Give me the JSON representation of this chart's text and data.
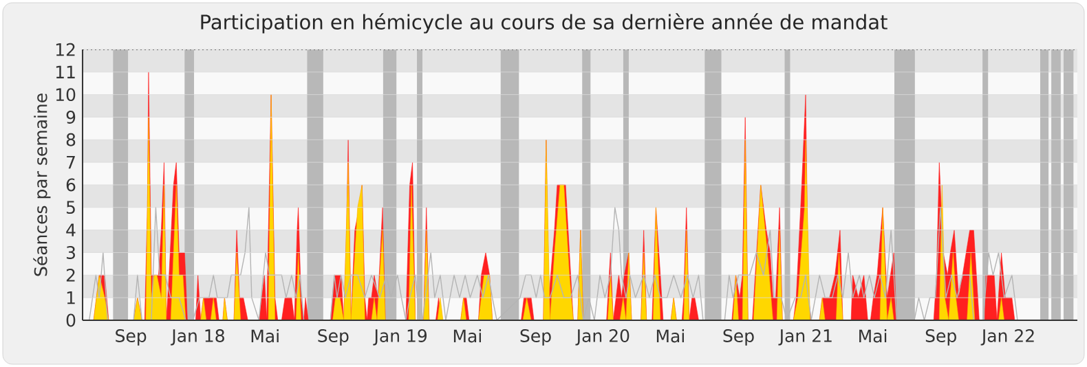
{
  "chart_data": {
    "type": "area",
    "title": "Participation en hémicycle au cours de sa dernière année de mandat",
    "ylabel": "Séances par semaine",
    "xlim": [
      "2017-06-06",
      "2022-05-05"
    ],
    "ylim": [
      0,
      12
    ],
    "xticks": [
      {
        "value": "2017-09-01",
        "label": "Sep"
      },
      {
        "value": "2018-01-01",
        "label": "Jan 18"
      },
      {
        "value": "2018-05-01",
        "label": "Mai"
      },
      {
        "value": "2018-09-01",
        "label": "Sep"
      },
      {
        "value": "2019-01-01",
        "label": "Jan 19"
      },
      {
        "value": "2019-05-01",
        "label": "Mai"
      },
      {
        "value": "2019-09-01",
        "label": "Sep"
      },
      {
        "value": "2020-01-01",
        "label": "Jan 20"
      },
      {
        "value": "2020-05-01",
        "label": "Mai"
      },
      {
        "value": "2020-09-01",
        "label": "Sep"
      },
      {
        "value": "2021-01-01",
        "label": "Jan 21"
      },
      {
        "value": "2021-05-01",
        "label": "Mai"
      },
      {
        "value": "2021-09-01",
        "label": "Sep"
      },
      {
        "value": "2022-01-01",
        "label": "Jan 22"
      }
    ],
    "yticks": [
      0,
      1,
      2,
      3,
      4,
      5,
      6,
      7,
      8,
      9,
      10,
      11,
      12
    ],
    "grid": "y",
    "bands": [
      {
        "axis": "x",
        "from": "2017-07-31",
        "to": "2017-08-27",
        "color": "#b8b8b8"
      },
      {
        "axis": "x",
        "from": "2017-12-07",
        "to": "2017-12-24",
        "color": "#b8b8b8"
      },
      {
        "axis": "x",
        "from": "2018-07-16",
        "to": "2018-08-14",
        "color": "#b8b8b8"
      },
      {
        "axis": "x",
        "from": "2018-11-30",
        "to": "2018-12-24",
        "color": "#b8b8b8"
      },
      {
        "axis": "x",
        "from": "2019-01-30",
        "to": "2019-02-09",
        "color": "#b8b8b8"
      },
      {
        "axis": "x",
        "from": "2019-06-30",
        "to": "2019-08-02",
        "color": "#b8b8b8"
      },
      {
        "axis": "x",
        "from": "2019-11-24",
        "to": "2019-12-09",
        "color": "#b8b8b8"
      },
      {
        "axis": "x",
        "from": "2020-02-06",
        "to": "2020-02-16",
        "color": "#b8b8b8"
      },
      {
        "axis": "x",
        "from": "2020-07-02",
        "to": "2020-08-01",
        "color": "#b8b8b8"
      },
      {
        "axis": "x",
        "from": "2020-11-23",
        "to": "2020-12-03",
        "color": "#b8b8b8"
      },
      {
        "axis": "x",
        "from": "2021-06-09",
        "to": "2021-07-16",
        "color": "#b8b8b8"
      },
      {
        "axis": "x",
        "from": "2021-11-15",
        "to": "2021-11-25",
        "color": "#b8b8b8"
      },
      {
        "axis": "x",
        "from": "2022-02-27",
        "to": "2022-03-14",
        "color": "#b8b8b8"
      },
      {
        "axis": "x",
        "from": "2022-03-19",
        "to": "2022-04-05",
        "color": "#b8b8b8"
      },
      {
        "axis": "x",
        "from": "2022-04-10",
        "to": "2022-04-28",
        "color": "#b8b8b8"
      }
    ],
    "series": [
      {
        "color": "#ff2020",
        "x": [
          "2017-06-26",
          "2017-07-06",
          "2017-07-16",
          "2017-07-23",
          "2017-09-06",
          "2017-09-13",
          "2017-09-21",
          "2017-09-26",
          "2017-10-01",
          "2017-10-03",
          "2017-10-08",
          "2017-10-13",
          "2017-10-21",
          "2017-10-26",
          "2017-10-31",
          "2017-11-04",
          "2017-11-09",
          "2017-11-17",
          "2017-11-22",
          "2017-11-27",
          "2017-12-07",
          "2017-12-12",
          "2017-12-27",
          "2017-12-31",
          "2018-01-05",
          "2018-01-10",
          "2018-01-15",
          "2018-02-02",
          "2018-02-07",
          "2018-02-14",
          "2018-02-17",
          "2018-02-22",
          "2018-03-06",
          "2018-03-11",
          "2018-03-16",
          "2018-03-23",
          "2018-03-31",
          "2018-04-20",
          "2018-04-25",
          "2018-04-30",
          "2018-05-04",
          "2018-05-12",
          "2018-05-19",
          "2018-05-24",
          "2018-05-31",
          "2018-06-06",
          "2018-06-18",
          "2018-06-23",
          "2018-06-28",
          "2018-06-30",
          "2018-07-05",
          "2018-07-10",
          "2018-07-13",
          "2018-07-18",
          "2018-08-27",
          "2018-09-03",
          "2018-09-15",
          "2018-09-20",
          "2018-09-25",
          "2018-09-28",
          "2018-10-03",
          "2018-10-10",
          "2018-10-18",
          "2018-10-23",
          "2018-10-28",
          "2018-11-01",
          "2018-11-04",
          "2018-11-09",
          "2018-11-14",
          "2018-11-21",
          "2018-11-29",
          "2018-12-04",
          "2019-01-10",
          "2019-01-17",
          "2019-01-22",
          "2019-01-27",
          "2019-02-11",
          "2019-02-16",
          "2019-02-21",
          "2019-03-05",
          "2019-03-10",
          "2019-03-15",
          "2019-04-19",
          "2019-04-24",
          "2019-04-29",
          "2019-05-04",
          "2019-05-21",
          "2019-05-26",
          "2019-06-03",
          "2019-06-10",
          "2019-06-15",
          "2019-08-06",
          "2019-08-11",
          "2019-08-24",
          "2019-08-29",
          "2019-09-15",
          "2019-09-20",
          "2019-09-25",
          "2019-10-05",
          "2019-10-10",
          "2019-10-25",
          "2019-11-01",
          "2019-11-08",
          "2019-11-16",
          "2019-11-21",
          "2019-11-26",
          "2020-01-07",
          "2020-01-14",
          "2020-01-19",
          "2020-01-24",
          "2020-01-29",
          "2020-02-03",
          "2020-02-08",
          "2020-02-16",
          "2020-02-21",
          "2020-03-09",
          "2020-03-14",
          "2020-03-19",
          "2020-03-29",
          "2020-04-05",
          "2020-04-13",
          "2020-04-18",
          "2020-05-02",
          "2020-05-07",
          "2020-05-12",
          "2020-05-22",
          "2020-05-25",
          "2020-05-30",
          "2020-06-04",
          "2020-06-09",
          "2020-06-14",
          "2020-06-21",
          "2020-08-20",
          "2020-08-27",
          "2020-09-03",
          "2020-09-08",
          "2020-09-13",
          "2020-09-18",
          "2020-09-26",
          "2020-10-11",
          "2020-10-21",
          "2020-10-28",
          "2020-11-02",
          "2020-11-07",
          "2020-11-14",
          "2020-11-19",
          "2020-12-09",
          "2020-12-14",
          "2020-12-24",
          "2020-12-31",
          "2021-01-05",
          "2021-01-10",
          "2021-01-25",
          "2021-01-30",
          "2021-02-12",
          "2021-02-22",
          "2021-03-03",
          "2021-03-08",
          "2021-03-23",
          "2021-03-26",
          "2021-04-05",
          "2021-04-15",
          "2021-04-22",
          "2021-04-27",
          "2021-05-02",
          "2021-05-09",
          "2021-05-19",
          "2021-05-27",
          "2021-06-08",
          "2021-06-13",
          "2021-08-19",
          "2021-08-24",
          "2021-08-29",
          "2021-09-05",
          "2021-09-13",
          "2021-09-18",
          "2021-09-25",
          "2021-10-03",
          "2021-10-10",
          "2021-10-23",
          "2021-10-30",
          "2021-11-04",
          "2021-11-09",
          "2021-11-19",
          "2021-11-21",
          "2021-12-06",
          "2021-12-11",
          "2021-12-19",
          "2021-12-26",
          "2022-01-07",
          "2022-01-12"
        ],
        "values": [
          0,
          2,
          2,
          0,
          0,
          1,
          0,
          0,
          5,
          11,
          2,
          2,
          2,
          4,
          7,
          0,
          2,
          6,
          7,
          3,
          3,
          0,
          0,
          2,
          0,
          1,
          1,
          1,
          0,
          0,
          1,
          0,
          0,
          4,
          1,
          1,
          0,
          0,
          1,
          2,
          0,
          10,
          1,
          0,
          0,
          1,
          1,
          0,
          4,
          5,
          1,
          0,
          1,
          0,
          0,
          2,
          2,
          0,
          4,
          8,
          0,
          4,
          5,
          6,
          1,
          0,
          1,
          1,
          2,
          1,
          5,
          0,
          0,
          6,
          7,
          0,
          0,
          5,
          0,
          0,
          1,
          0,
          0,
          1,
          1,
          0,
          0,
          2,
          3,
          2,
          0,
          0,
          1,
          1,
          0,
          0,
          8,
          1,
          4,
          6,
          6,
          3,
          0,
          0,
          4,
          0,
          0,
          3,
          0,
          1,
          2,
          1,
          2,
          3,
          0,
          0,
          4,
          0,
          0,
          5,
          2,
          0,
          0,
          1,
          0,
          0,
          1,
          5,
          0,
          1,
          1,
          0,
          0,
          2,
          1,
          2,
          9,
          0,
          0,
          6,
          4,
          3,
          1,
          1,
          5,
          0,
          0,
          1,
          6,
          10,
          1,
          0,
          0,
          1,
          1,
          2,
          4,
          0,
          0,
          2,
          1,
          2,
          0,
          0,
          1,
          2,
          5,
          1,
          3,
          0,
          0,
          2,
          7,
          3,
          2,
          3,
          4,
          1,
          2,
          4,
          4,
          2,
          0,
          0,
          2,
          2,
          0,
          3,
          1,
          1,
          0
        ]
      },
      {
        "color": "#ffd700",
        "x": [
          "2017-06-26",
          "2017-07-06",
          "2017-07-16",
          "2017-07-23",
          "2017-09-06",
          "2017-09-13",
          "2017-09-21",
          "2017-09-28",
          "2017-10-03",
          "2017-10-08",
          "2017-10-13",
          "2017-10-18",
          "2017-10-26",
          "2017-10-31",
          "2017-11-04",
          "2017-11-12",
          "2017-11-22",
          "2017-11-27",
          "2017-12-04",
          "2017-12-09",
          "2018-01-05",
          "2018-01-10",
          "2018-01-15",
          "2018-01-23",
          "2018-01-28",
          "2018-02-02",
          "2018-02-14",
          "2018-02-17",
          "2018-02-22",
          "2018-03-06",
          "2018-03-11",
          "2018-03-18",
          "2018-05-07",
          "2018-05-12",
          "2018-05-19",
          "2018-06-26",
          "2018-06-30",
          "2018-07-05",
          "2018-08-31",
          "2018-09-05",
          "2018-09-13",
          "2018-09-20",
          "2018-09-28",
          "2018-10-03",
          "2018-10-15",
          "2018-10-23",
          "2018-10-28",
          "2018-11-09",
          "2018-11-14",
          "2018-11-19",
          "2018-11-29",
          "2018-12-04",
          "2019-01-15",
          "2019-01-20",
          "2019-01-27",
          "2019-02-11",
          "2019-02-16",
          "2019-02-21",
          "2019-03-08",
          "2019-03-13",
          "2019-03-18",
          "2019-04-19",
          "2019-04-24",
          "2019-04-29",
          "2019-05-21",
          "2019-05-31",
          "2019-06-10",
          "2019-06-15",
          "2019-08-09",
          "2019-08-16",
          "2019-08-24",
          "2019-09-15",
          "2019-09-20",
          "2019-09-27",
          "2019-10-05",
          "2019-10-15",
          "2019-10-22",
          "2019-11-01",
          "2019-11-08",
          "2019-11-16",
          "2019-11-21",
          "2019-11-26",
          "2020-01-09",
          "2020-01-14",
          "2020-01-19",
          "2020-01-31",
          "2020-02-06",
          "2020-02-11",
          "2020-02-16",
          "2020-02-21",
          "2020-03-09",
          "2020-03-14",
          "2020-03-19",
          "2020-03-31",
          "2020-04-05",
          "2020-04-13",
          "2020-05-02",
          "2020-05-07",
          "2020-05-12",
          "2020-05-25",
          "2020-05-30",
          "2020-06-04",
          "2020-08-22",
          "2020-08-27",
          "2020-09-01",
          "2020-09-08",
          "2020-09-13",
          "2020-09-18",
          "2020-09-28",
          "2020-10-11",
          "2020-10-23",
          "2020-11-02",
          "2020-11-09",
          "2020-11-14",
          "2020-11-19",
          "2020-12-09",
          "2020-12-17",
          "2020-12-29",
          "2020-12-31",
          "2021-01-08",
          "2021-01-25",
          "2021-01-30",
          "2021-02-04",
          "2021-02-24",
          "2021-03-01",
          "2021-03-08",
          "2021-05-14",
          "2021-05-19",
          "2021-05-27",
          "2021-06-03",
          "2021-06-08",
          "2021-08-29",
          "2021-09-03",
          "2021-09-08",
          "2021-09-15",
          "2021-09-23",
          "2021-09-28",
          "2021-10-03",
          "2021-10-18",
          "2021-10-25",
          "2021-11-01",
          "2021-12-14",
          "2021-12-19",
          "2021-12-24"
        ],
        "values": [
          0,
          2,
          1,
          0,
          0,
          1,
          0,
          0,
          9,
          1,
          2,
          2,
          1,
          6,
          0,
          0,
          6,
          2,
          2,
          0,
          0,
          1,
          0,
          0,
          1,
          0,
          0,
          1,
          0,
          0,
          3,
          0,
          0,
          10,
          0,
          0,
          3,
          0,
          0,
          1,
          1,
          0,
          7,
          0,
          5,
          6,
          0,
          0,
          1,
          0,
          4,
          0,
          0,
          6,
          0,
          0,
          4,
          0,
          0,
          1,
          0,
          0,
          1,
          0,
          0,
          2,
          2,
          0,
          0,
          1,
          0,
          0,
          8,
          0,
          3,
          6,
          6,
          2,
          0,
          0,
          4,
          0,
          0,
          2,
          0,
          0,
          1,
          0,
          3,
          0,
          0,
          3,
          0,
          0,
          5,
          0,
          0,
          1,
          0,
          0,
          4,
          0,
          0,
          2,
          0,
          0,
          8,
          0,
          0,
          6,
          3,
          0,
          0,
          4,
          0,
          0,
          1,
          5,
          8,
          0,
          0,
          1,
          0,
          0,
          3,
          0,
          0,
          5,
          0,
          1,
          0,
          0,
          6,
          1,
          0,
          3,
          1,
          0,
          0,
          3,
          0,
          0,
          1,
          0
        ]
      },
      {
        "type": "line",
        "color": "#b4b4b4",
        "x": [
          "2017-06-18",
          "2017-06-30",
          "2017-07-06",
          "2017-07-13",
          "2017-07-21",
          "2017-09-06",
          "2017-09-13",
          "2017-09-21",
          "2017-10-08",
          "2017-10-16",
          "2017-10-23",
          "2017-11-02",
          "2017-11-12",
          "2017-11-27",
          "2017-12-09",
          "2017-12-22",
          "2018-01-03",
          "2018-01-20",
          "2018-01-28",
          "2018-02-04",
          "2018-02-12",
          "2018-02-22",
          "2018-03-01",
          "2018-03-18",
          "2018-03-26",
          "2018-04-02",
          "2018-04-07",
          "2018-04-20",
          "2018-05-02",
          "2018-05-09",
          "2018-05-31",
          "2018-06-08",
          "2018-06-18",
          "2018-06-26",
          "2018-07-03",
          "2018-07-10",
          "2018-08-27",
          "2018-09-03",
          "2018-09-08",
          "2018-09-15",
          "2018-09-23",
          "2018-10-03",
          "2018-10-15",
          "2018-10-28",
          "2018-11-09",
          "2018-11-24",
          "2018-12-06",
          "2018-12-14",
          "2018-12-26",
          "2019-01-02",
          "2019-01-10",
          "2019-01-17",
          "2019-01-27",
          "2019-02-04",
          "2019-02-09",
          "2019-02-24",
          "2019-03-03",
          "2019-03-13",
          "2019-03-23",
          "2019-04-07",
          "2019-04-17",
          "2019-04-27",
          "2019-05-06",
          "2019-05-19",
          "2019-05-29",
          "2019-06-08",
          "2019-06-15",
          "2019-06-23",
          "2019-08-04",
          "2019-08-14",
          "2019-08-24",
          "2019-09-02",
          "2019-09-10",
          "2019-09-17",
          "2019-09-27",
          "2019-10-10",
          "2019-10-22",
          "2019-11-03",
          "2019-11-16",
          "2019-11-26",
          "2019-12-06",
          "2019-12-16",
          "2019-12-26",
          "2020-01-04",
          "2020-01-14",
          "2020-01-22",
          "2020-01-29",
          "2020-02-03",
          "2020-02-11",
          "2020-02-18",
          "2020-02-28",
          "2020-03-14",
          "2020-03-24",
          "2020-04-03",
          "2020-04-13",
          "2020-04-25",
          "2020-05-07",
          "2020-05-20",
          "2020-06-01",
          "2020-06-11",
          "2020-06-21",
          "2020-06-29",
          "2020-08-07",
          "2020-08-15",
          "2020-08-22",
          "2020-09-01",
          "2020-09-21",
          "2020-10-03",
          "2020-10-16",
          "2020-10-28",
          "2020-11-04",
          "2020-11-17",
          "2020-11-27",
          "2020-12-12",
          "2020-12-22",
          "2020-12-31",
          "2021-01-10",
          "2021-01-25",
          "2021-02-04",
          "2021-02-17",
          "2021-02-27",
          "2021-03-08",
          "2021-03-18",
          "2021-03-26",
          "2021-04-07",
          "2021-04-15",
          "2021-04-25",
          "2021-05-04",
          "2021-05-14",
          "2021-05-24",
          "2021-06-03",
          "2021-06-13",
          "2021-07-15",
          "2021-07-23",
          "2021-08-02",
          "2021-08-12",
          "2021-08-22",
          "2021-08-31",
          "2021-09-10",
          "2021-09-20",
          "2021-09-30",
          "2021-10-10",
          "2021-10-23",
          "2021-10-30",
          "2021-11-16",
          "2021-11-26",
          "2021-12-04",
          "2021-12-14",
          "2021-12-24",
          "2022-01-07",
          "2022-01-17"
        ],
        "values": [
          0,
          2,
          1,
          3,
          0,
          0,
          2,
          0,
          0,
          5,
          2,
          2,
          1,
          1,
          0,
          0,
          1,
          1,
          2,
          1,
          1,
          1,
          2,
          2,
          3,
          5,
          1,
          0,
          3,
          2,
          2,
          1,
          2,
          1,
          2,
          0,
          0,
          2,
          1,
          2,
          1,
          2,
          2,
          1,
          2,
          1,
          2,
          1,
          2,
          1,
          0,
          1,
          2,
          0,
          0,
          3,
          1,
          2,
          0,
          2,
          1,
          2,
          1,
          2,
          1,
          2,
          1,
          0,
          1,
          2,
          2,
          1,
          2,
          1,
          1,
          2,
          1,
          1,
          2,
          0,
          1,
          0,
          2,
          1,
          2,
          5,
          4,
          2,
          1,
          2,
          1,
          2,
          1,
          2,
          1,
          1,
          2,
          1,
          2,
          1,
          2,
          0,
          0,
          2,
          1,
          2,
          2,
          3,
          2,
          4,
          1,
          1,
          0,
          1,
          1,
          2,
          0,
          2,
          1,
          1,
          2,
          1,
          3,
          1,
          2,
          1,
          2,
          1,
          2,
          1,
          4,
          0,
          0,
          1,
          0,
          1,
          1,
          5,
          1,
          2,
          1,
          2,
          2,
          0,
          0,
          3,
          2,
          3,
          1,
          2,
          0
        ]
      }
    ]
  }
}
